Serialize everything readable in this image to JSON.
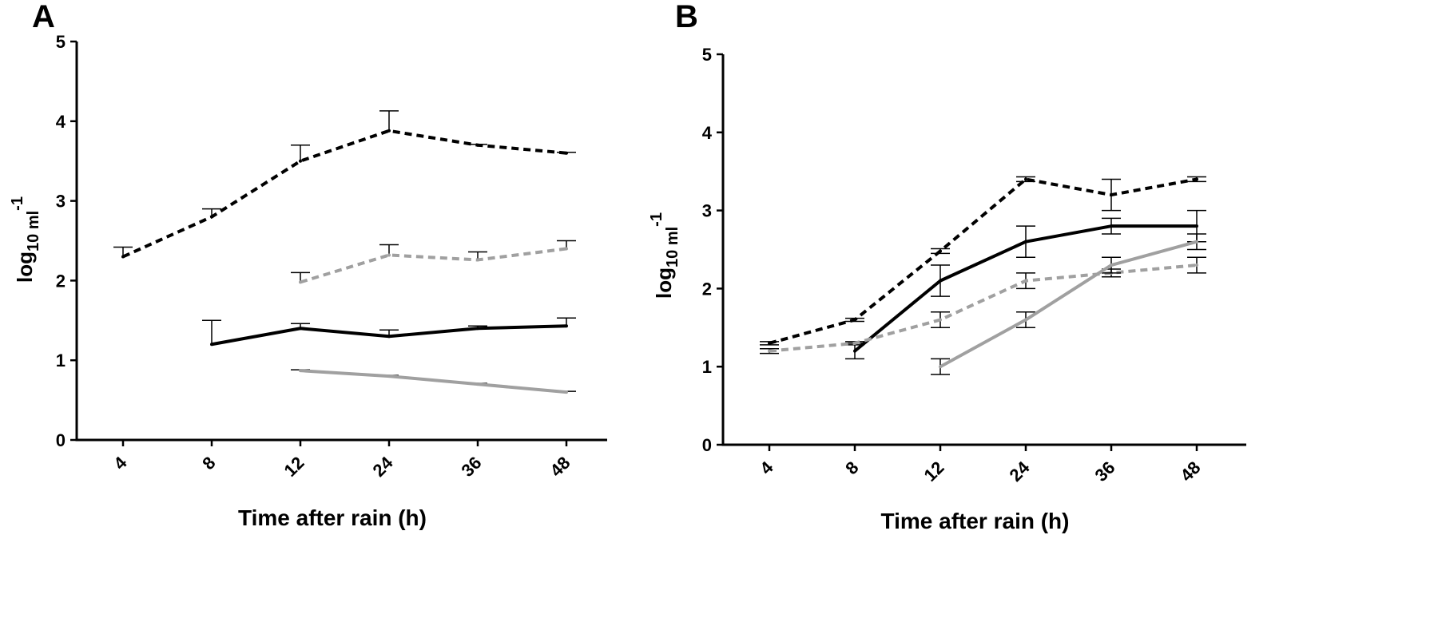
{
  "chart_data": [
    {
      "panel": "A",
      "type": "line",
      "categories": [
        "4",
        "8",
        "12",
        "24",
        "36",
        "48"
      ],
      "ylim": [
        0,
        5
      ],
      "yticks": [
        "0",
        "1",
        "2",
        "3",
        "4",
        "5"
      ],
      "xlabel": "Time after rain (h)",
      "ylabel": {
        "base": "log",
        "sub": "10",
        "unit": " ml",
        "sup": "-1"
      },
      "series": [
        {
          "name": "black dashed",
          "color": "#000000",
          "dashed": true,
          "values": [
            2.3,
            2.8,
            3.5,
            3.88,
            3.7,
            3.6
          ],
          "err_up": [
            0.12,
            0.1,
            0.2,
            0.25,
            0.01,
            0.01
          ],
          "err_down": [
            0,
            0,
            0,
            0,
            0,
            0
          ]
        },
        {
          "name": "grey dashed",
          "color": "#a0a0a0",
          "dashed": true,
          "values": [
            null,
            null,
            1.98,
            2.32,
            2.26,
            2.4
          ],
          "err_up": [
            0,
            0,
            0.12,
            0.13,
            0.1,
            0.1
          ],
          "err_down": [
            0,
            0,
            0,
            0,
            0,
            0
          ]
        },
        {
          "name": "black solid",
          "color": "#000000",
          "dashed": false,
          "values": [
            null,
            1.2,
            1.4,
            1.3,
            1.4,
            1.43
          ],
          "err_up": [
            0,
            0.3,
            0.06,
            0.08,
            0.03,
            0.1
          ],
          "err_down": [
            0,
            0,
            0,
            0,
            0,
            0
          ]
        },
        {
          "name": "grey solid",
          "color": "#a0a0a0",
          "dashed": false,
          "values": [
            null,
            null,
            0.87,
            0.8,
            0.7,
            0.6
          ],
          "err_up": [
            0,
            0,
            0.01,
            0.01,
            0.01,
            0.01
          ],
          "err_down": [
            0,
            0,
            0,
            0,
            0,
            0
          ]
        }
      ]
    },
    {
      "panel": "B",
      "type": "line",
      "categories": [
        "4",
        "8",
        "12",
        "24",
        "36",
        "48"
      ],
      "ylim": [
        0,
        5
      ],
      "yticks": [
        "0",
        "1",
        "2",
        "3",
        "4",
        "5"
      ],
      "xlabel": "Time after rain (h)",
      "ylabel": {
        "base": "log",
        "sub": "10",
        "unit": " ml",
        "sup": "-1"
      },
      "series": [
        {
          "name": "black dashed",
          "color": "#000000",
          "dashed": true,
          "values": [
            1.3,
            1.6,
            2.48,
            3.4,
            3.2,
            3.4
          ],
          "err_up": [
            0.02,
            0.02,
            0.03,
            0.03,
            0.2,
            0.03
          ],
          "err_down": [
            0.02,
            0.02,
            0.03,
            0.03,
            0.2,
            0.03
          ]
        },
        {
          "name": "black solid",
          "color": "#000000",
          "dashed": false,
          "values": [
            null,
            1.2,
            2.1,
            2.6,
            2.8,
            2.8
          ],
          "err_up": [
            0,
            0.1,
            0.2,
            0.2,
            0.1,
            0.2
          ],
          "err_down": [
            0,
            0.1,
            0.2,
            0.2,
            0.1,
            0.2
          ]
        },
        {
          "name": "grey dashed",
          "color": "#a0a0a0",
          "dashed": true,
          "values": [
            1.2,
            1.3,
            1.6,
            2.1,
            2.2,
            2.3
          ],
          "err_up": [
            0.03,
            0.02,
            0.1,
            0.1,
            0.05,
            0.1
          ],
          "err_down": [
            0.03,
            0.02,
            0.1,
            0.1,
            0.05,
            0.1
          ]
        },
        {
          "name": "grey solid",
          "color": "#a0a0a0",
          "dashed": false,
          "values": [
            null,
            null,
            1.0,
            1.6,
            2.3,
            2.6
          ],
          "err_up": [
            0,
            0,
            0.1,
            0.1,
            0.1,
            0.1
          ],
          "err_down": [
            0,
            0,
            0.1,
            0.1,
            0.1,
            0.1
          ]
        }
      ]
    }
  ]
}
